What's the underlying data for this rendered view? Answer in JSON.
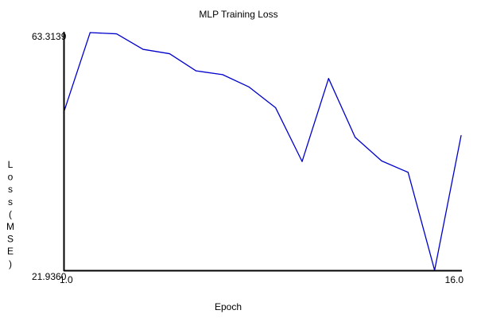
{
  "chart_data": {
    "type": "line",
    "title": "MLP Training Loss",
    "xlabel": "Epoch",
    "ylabel": "Loss (MSE)",
    "x": [
      1,
      2,
      3,
      4,
      5,
      6,
      7,
      8,
      9,
      10,
      11,
      12,
      13,
      14,
      15,
      16
    ],
    "series": [
      {
        "values": [
          49.35,
          63.31,
          63.1,
          60.4,
          59.64,
          56.65,
          56.0,
          53.84,
          50.23,
          40.88,
          55.33,
          45.1,
          40.98,
          38.99,
          21.94,
          45.39
        ]
      }
    ],
    "xlim": [
      1,
      16
    ],
    "ylim": [
      21.936,
      63.3139
    ],
    "x_ticks": [
      "1.0",
      "16.0"
    ],
    "y_ticks": [
      "21.9360",
      "63.3139"
    ],
    "grid": false,
    "line_color": "#0000cc"
  }
}
